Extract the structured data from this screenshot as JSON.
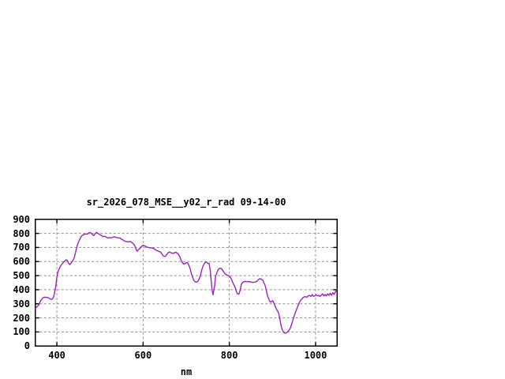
{
  "chart": {
    "title": "sr_2026_078_MSE__y02_r_rad 09-14-00",
    "xlabel": "nm"
  },
  "colors": {
    "line": "#A020C0",
    "grid": "#909090",
    "border": "#000000",
    "background": "#FFFFFF",
    "text": "#000000"
  },
  "chart_data": {
    "type": "line",
    "title": "sr_2026_078_MSE__y02_r_rad 09-14-00",
    "xlabel": "nm",
    "ylabel": "",
    "xlim": [
      350,
      1050
    ],
    "ylim": [
      0,
      900
    ],
    "x_ticks": [
      400,
      600,
      800,
      1000
    ],
    "y_ticks": [
      0,
      100,
      200,
      300,
      400,
      500,
      600,
      700,
      800,
      900
    ],
    "grid": true,
    "grid_style": "dashed-gray",
    "legend": false,
    "series": [
      {
        "name": "sr_2026_078_MSE__y02_r_rad",
        "color": "#A020C0",
        "points": [
          [
            350,
            265
          ],
          [
            353,
            278
          ],
          [
            356,
            285
          ],
          [
            359,
            298
          ],
          [
            362,
            320
          ],
          [
            365,
            332
          ],
          [
            368,
            344
          ],
          [
            371,
            347
          ],
          [
            374,
            346
          ],
          [
            377,
            345
          ],
          [
            380,
            343
          ],
          [
            383,
            337
          ],
          [
            386,
            332
          ],
          [
            389,
            333
          ],
          [
            392,
            345
          ],
          [
            394,
            368
          ],
          [
            396,
            400
          ],
          [
            398,
            438
          ],
          [
            400,
            490
          ],
          [
            402,
            520
          ],
          [
            404,
            541
          ],
          [
            406,
            551
          ],
          [
            409,
            570
          ],
          [
            412,
            583
          ],
          [
            415,
            594
          ],
          [
            418,
            603
          ],
          [
            421,
            612
          ],
          [
            424,
            610
          ],
          [
            427,
            589
          ],
          [
            430,
            578
          ],
          [
            433,
            589
          ],
          [
            436,
            602
          ],
          [
            439,
            617
          ],
          [
            441,
            636
          ],
          [
            444,
            673
          ],
          [
            447,
            711
          ],
          [
            450,
            739
          ],
          [
            453,
            757
          ],
          [
            456,
            776
          ],
          [
            459,
            786
          ],
          [
            462,
            791
          ],
          [
            465,
            795
          ],
          [
            468,
            796
          ],
          [
            471,
            795
          ],
          [
            474,
            803
          ],
          [
            477,
            807
          ],
          [
            480,
            800
          ],
          [
            483,
            790
          ],
          [
            486,
            785
          ],
          [
            489,
            799
          ],
          [
            492,
            807
          ],
          [
            495,
            801
          ],
          [
            498,
            795
          ],
          [
            501,
            789
          ],
          [
            504,
            785
          ],
          [
            507,
            776
          ],
          [
            510,
            780
          ],
          [
            513,
            776
          ],
          [
            516,
            771
          ],
          [
            519,
            767
          ],
          [
            523,
            770
          ],
          [
            526,
            768
          ],
          [
            529,
            772
          ],
          [
            532,
            776
          ],
          [
            535,
            774
          ],
          [
            538,
            771
          ],
          [
            541,
            769
          ],
          [
            544,
            768
          ],
          [
            547,
            766
          ],
          [
            550,
            759
          ],
          [
            553,
            754
          ],
          [
            556,
            747
          ],
          [
            559,
            743
          ],
          [
            562,
            741
          ],
          [
            565,
            741
          ],
          [
            568,
            742
          ],
          [
            571,
            741
          ],
          [
            574,
            735
          ],
          [
            577,
            728
          ],
          [
            580,
            716
          ],
          [
            583,
            693
          ],
          [
            586,
            673
          ],
          [
            589,
            684
          ],
          [
            592,
            692
          ],
          [
            595,
            703
          ],
          [
            598,
            712
          ],
          [
            601,
            716
          ],
          [
            604,
            711
          ],
          [
            607,
            706
          ],
          [
            610,
            701
          ],
          [
            613,
            699
          ],
          [
            616,
            697
          ],
          [
            619,
            697
          ],
          [
            622,
            695
          ],
          [
            625,
            691
          ],
          [
            628,
            686
          ],
          [
            631,
            679
          ],
          [
            634,
            675
          ],
          [
            637,
            672
          ],
          [
            640,
            668
          ],
          [
            643,
            657
          ],
          [
            646,
            643
          ],
          [
            649,
            637
          ],
          [
            652,
            638
          ],
          [
            655,
            650
          ],
          [
            658,
            663
          ],
          [
            661,
            668
          ],
          [
            664,
            664
          ],
          [
            667,
            660
          ],
          [
            670,
            657
          ],
          [
            673,
            663
          ],
          [
            676,
            667
          ],
          [
            679,
            660
          ],
          [
            682,
            652
          ],
          [
            685,
            635
          ],
          [
            688,
            610
          ],
          [
            691,
            593
          ],
          [
            694,
            582
          ],
          [
            697,
            585
          ],
          [
            700,
            591
          ],
          [
            703,
            592
          ],
          [
            706,
            575
          ],
          [
            709,
            551
          ],
          [
            712,
            513
          ],
          [
            715,
            487
          ],
          [
            718,
            464
          ],
          [
            721,
            456
          ],
          [
            724,
            453
          ],
          [
            727,
            460
          ],
          [
            730,
            477
          ],
          [
            733,
            500
          ],
          [
            736,
            540
          ],
          [
            739,
            568
          ],
          [
            742,
            585
          ],
          [
            745,
            596
          ],
          [
            748,
            594
          ],
          [
            750,
            586
          ],
          [
            753,
            588
          ],
          [
            756,
            532
          ],
          [
            758,
            460
          ],
          [
            760,
            400
          ],
          [
            762,
            364
          ],
          [
            764,
            395
          ],
          [
            766,
            430
          ],
          [
            768,
            495
          ],
          [
            771,
            520
          ],
          [
            774,
            542
          ],
          [
            777,
            550
          ],
          [
            780,
            553
          ],
          [
            783,
            545
          ],
          [
            786,
            530
          ],
          [
            789,
            517
          ],
          [
            792,
            508
          ],
          [
            795,
            503
          ],
          [
            798,
            501
          ],
          [
            801,
            495
          ],
          [
            804,
            480
          ],
          [
            807,
            458
          ],
          [
            810,
            438
          ],
          [
            813,
            420
          ],
          [
            816,
            390
          ],
          [
            819,
            370
          ],
          [
            822,
            368
          ],
          [
            825,
            395
          ],
          [
            828,
            440
          ],
          [
            831,
            452
          ],
          [
            834,
            457
          ],
          [
            837,
            459
          ],
          [
            840,
            458
          ],
          [
            843,
            457
          ],
          [
            846,
            457
          ],
          [
            849,
            456
          ],
          [
            852,
            453
          ],
          [
            855,
            452
          ],
          [
            858,
            453
          ],
          [
            861,
            455
          ],
          [
            864,
            460
          ],
          [
            867,
            470
          ],
          [
            870,
            478
          ],
          [
            873,
            477
          ],
          [
            876,
            470
          ],
          [
            878,
            467
          ],
          [
            880,
            448
          ],
          [
            882,
            439
          ],
          [
            884,
            420
          ],
          [
            886,
            392
          ],
          [
            888,
            364
          ],
          [
            890,
            345
          ],
          [
            892,
            330
          ],
          [
            894,
            318
          ],
          [
            896,
            312
          ],
          [
            898,
            315
          ],
          [
            900,
            322
          ],
          [
            902,
            315
          ],
          [
            904,
            300
          ],
          [
            906,
            286
          ],
          [
            908,
            270
          ],
          [
            910,
            258
          ],
          [
            912,
            250
          ],
          [
            914,
            235
          ],
          [
            916,
            210
          ],
          [
            918,
            178
          ],
          [
            920,
            145
          ],
          [
            922,
            122
          ],
          [
            924,
            108
          ],
          [
            926,
            97
          ],
          [
            928,
            93
          ],
          [
            930,
            91
          ],
          [
            932,
            93
          ],
          [
            934,
            99
          ],
          [
            936,
            104
          ],
          [
            938,
            109
          ],
          [
            940,
            120
          ],
          [
            942,
            131
          ],
          [
            944,
            150
          ],
          [
            947,
            180
          ],
          [
            950,
            210
          ],
          [
            953,
            236
          ],
          [
            956,
            260
          ],
          [
            959,
            285
          ],
          [
            962,
            306
          ],
          [
            965,
            322
          ],
          [
            968,
            334
          ],
          [
            971,
            344
          ],
          [
            974,
            350
          ],
          [
            977,
            350
          ],
          [
            980,
            347
          ],
          [
            983,
            356
          ],
          [
            986,
            360
          ],
          [
            989,
            352
          ],
          [
            992,
            366
          ],
          [
            995,
            353
          ],
          [
            998,
            356
          ],
          [
            1001,
            365
          ],
          [
            1004,
            356
          ],
          [
            1007,
            360
          ],
          [
            1010,
            352
          ],
          [
            1013,
            360
          ],
          [
            1016,
            371
          ],
          [
            1019,
            356
          ],
          [
            1022,
            366
          ],
          [
            1025,
            356
          ],
          [
            1028,
            371
          ],
          [
            1031,
            360
          ],
          [
            1034,
            375
          ],
          [
            1037,
            360
          ],
          [
            1040,
            379
          ],
          [
            1043,
            366
          ],
          [
            1046,
            385
          ],
          [
            1049,
            402
          ],
          [
            1050,
            405
          ]
        ]
      }
    ]
  }
}
